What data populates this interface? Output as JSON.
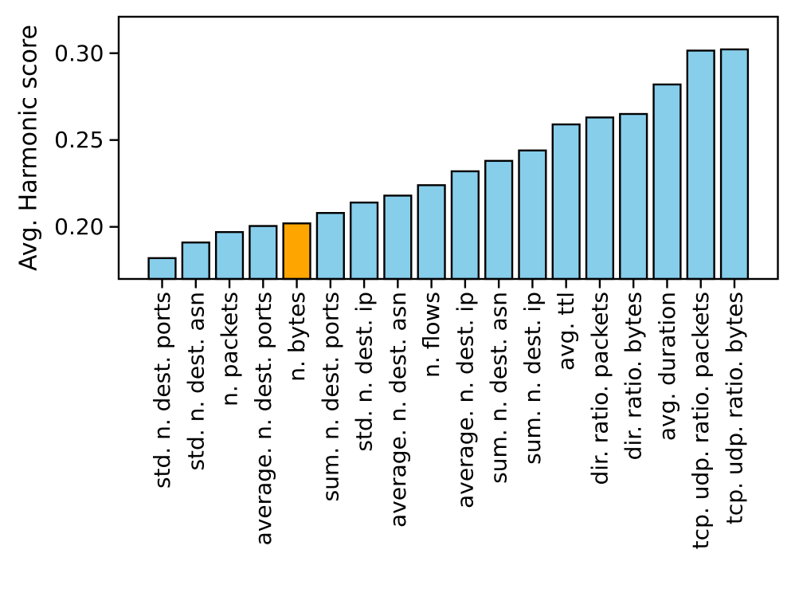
{
  "figure": {
    "background_color": "#ffffff",
    "axes_edge_color": "#000000"
  },
  "chart_data": {
    "type": "bar",
    "title": "",
    "xlabel": "",
    "ylabel": "Avg. Harmonic score",
    "categories": [
      "std. n. dest. ports",
      "std. n. dest. asn",
      "n. packets",
      "average. n. dest. ports",
      "n. bytes",
      "sum. n. dest. ports",
      "std. n. dest. ip",
      "average. n. dest. asn",
      "n. flows",
      "average. n. dest. ip",
      "sum. n. dest. asn",
      "sum. n. dest. ip",
      "avg. ttl",
      "dir. ratio. packets",
      "dir. ratio. bytes",
      "avg. duration",
      "tcp. udp. ratio. packets",
      "tcp. udp. ratio. bytes"
    ],
    "values": [
      0.182,
      0.191,
      0.197,
      0.2005,
      0.202,
      0.208,
      0.214,
      0.218,
      0.224,
      0.232,
      0.238,
      0.244,
      0.259,
      0.263,
      0.265,
      0.282,
      0.3015,
      0.3022
    ],
    "highlight_index": 4,
    "highlighted_category": "n. bytes",
    "bar_color": "#87CEEB",
    "highlight_color": "#FFA500",
    "edge_color": "#000000",
    "ylim": [
      0.17,
      0.321
    ],
    "yticks": [
      0.2,
      0.25,
      0.3
    ],
    "ytick_labels": [
      "0.20",
      "0.25",
      "0.30"
    ],
    "xtick_rotation_deg": 90,
    "grid": false,
    "legend": "none"
  }
}
